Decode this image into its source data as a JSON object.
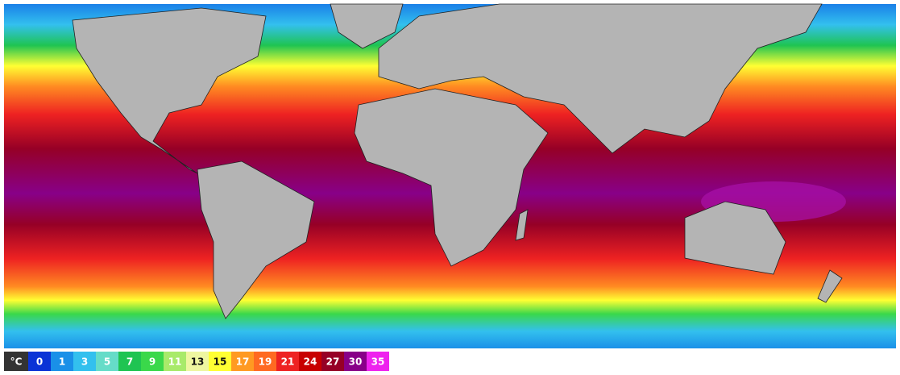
{
  "legend": {
    "unit": "°C",
    "unit_color": "#333333",
    "items": [
      {
        "value": 0,
        "color": "#0a33d6"
      },
      {
        "value": 1,
        "color": "#1a90e8"
      },
      {
        "value": 3,
        "color": "#33c0ee"
      },
      {
        "value": 5,
        "color": "#66dcc8"
      },
      {
        "value": 7,
        "color": "#1fc452"
      },
      {
        "value": 9,
        "color": "#3ad84a"
      },
      {
        "value": 11,
        "color": "#a8ea6a"
      },
      {
        "value": 13,
        "color": "#eef6a0"
      },
      {
        "value": 15,
        "color": "#ffff33"
      },
      {
        "value": 17,
        "color": "#ff9a22"
      },
      {
        "value": 19,
        "color": "#ff6a22"
      },
      {
        "value": 21,
        "color": "#ee2222"
      },
      {
        "value": 24,
        "color": "#c80000"
      },
      {
        "value": 27,
        "color": "#960026"
      },
      {
        "value": 30,
        "color": "#880088"
      },
      {
        "value": 35,
        "color": "#ee22ee"
      }
    ]
  }
}
